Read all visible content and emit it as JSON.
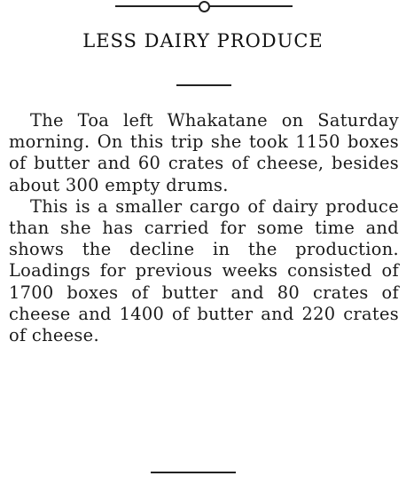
{
  "article": {
    "headline": "LESS DAIRY PRODUCE",
    "paragraphs": [
      "The Toa left Whakatane on Saturday morning. On this trip she took 1150 boxes of butter and 60 crates of cheese, besides about 300 empty drums.",
      "This is a smaller cargo of dairy produce than she has carried for some time and shows the decline in the production. Loadings for previous weeks consisted of 1700 boxes of butter and 80 crates of cheese and 1400 of butter and 220 crates of cheese."
    ]
  }
}
